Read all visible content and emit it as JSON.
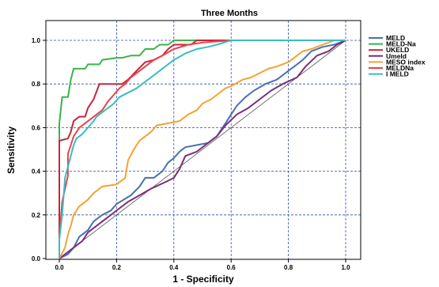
{
  "chart_data": {
    "type": "line",
    "title": "Three Months",
    "xlabel": "1 - Specificity",
    "ylabel": "Sensitivity",
    "xlim": [
      0,
      1
    ],
    "ylim": [
      0,
      1
    ],
    "xticks": [
      "0.0",
      "0.2",
      "0.4",
      "0.6",
      "0.8",
      "1.0"
    ],
    "yticks": [
      "0.0",
      "0.2",
      "0.4",
      "0.6",
      "0.8",
      "1.0"
    ],
    "grid": true,
    "grid_style": "dashed",
    "legend_position": "right",
    "reference_line": {
      "from": [
        0,
        0
      ],
      "to": [
        1,
        1
      ]
    },
    "series": [
      {
        "name": "MELD",
        "color": "#4a6fb5",
        "points": [
          [
            0,
            0
          ],
          [
            0.03,
            0.02
          ],
          [
            0.05,
            0.05
          ],
          [
            0.07,
            0.1
          ],
          [
            0.1,
            0.13
          ],
          [
            0.12,
            0.17
          ],
          [
            0.15,
            0.2
          ],
          [
            0.18,
            0.22
          ],
          [
            0.2,
            0.25
          ],
          [
            0.25,
            0.29
          ],
          [
            0.28,
            0.33
          ],
          [
            0.3,
            0.37
          ],
          [
            0.33,
            0.37
          ],
          [
            0.36,
            0.4
          ],
          [
            0.38,
            0.44
          ],
          [
            0.4,
            0.46
          ],
          [
            0.42,
            0.49
          ],
          [
            0.44,
            0.51
          ],
          [
            0.48,
            0.52
          ],
          [
            0.52,
            0.53
          ],
          [
            0.55,
            0.56
          ],
          [
            0.58,
            0.62
          ],
          [
            0.6,
            0.66
          ],
          [
            0.62,
            0.7
          ],
          [
            0.65,
            0.74
          ],
          [
            0.68,
            0.77
          ],
          [
            0.72,
            0.8
          ],
          [
            0.76,
            0.82
          ],
          [
            0.8,
            0.86
          ],
          [
            0.83,
            0.89
          ],
          [
            0.85,
            0.91
          ],
          [
            0.88,
            0.95
          ],
          [
            0.92,
            0.97
          ],
          [
            0.96,
            0.98
          ],
          [
            1,
            1
          ]
        ]
      },
      {
        "name": "MELD-Na",
        "color": "#39b54a",
        "points": [
          [
            0,
            0
          ],
          [
            0,
            0.62
          ],
          [
            0.01,
            0.74
          ],
          [
            0.03,
            0.74
          ],
          [
            0.04,
            0.82
          ],
          [
            0.05,
            0.87
          ],
          [
            0.09,
            0.87
          ],
          [
            0.1,
            0.89
          ],
          [
            0.14,
            0.89
          ],
          [
            0.15,
            0.91
          ],
          [
            0.2,
            0.92
          ],
          [
            0.22,
            0.92
          ],
          [
            0.25,
            0.93
          ],
          [
            0.28,
            0.93
          ],
          [
            0.3,
            0.96
          ],
          [
            0.33,
            0.96
          ],
          [
            0.35,
            0.98
          ],
          [
            0.38,
            0.98
          ],
          [
            0.4,
            1
          ],
          [
            1,
            1
          ]
        ]
      },
      {
        "name": "UKELD",
        "color": "#c0283c",
        "points": [
          [
            0,
            0
          ],
          [
            0,
            0.37
          ],
          [
            0,
            0.54
          ],
          [
            0.03,
            0.55
          ],
          [
            0.04,
            0.58
          ],
          [
            0.05,
            0.63
          ],
          [
            0.07,
            0.65
          ],
          [
            0.09,
            0.65
          ],
          [
            0.1,
            0.69
          ],
          [
            0.12,
            0.73
          ],
          [
            0.14,
            0.8
          ],
          [
            0.22,
            0.8
          ],
          [
            0.24,
            0.82
          ],
          [
            0.27,
            0.86
          ],
          [
            0.3,
            0.9
          ],
          [
            0.33,
            0.91
          ],
          [
            0.36,
            0.93
          ],
          [
            0.38,
            0.96
          ],
          [
            0.4,
            0.98
          ],
          [
            0.46,
            0.98
          ],
          [
            0.48,
            1
          ],
          [
            1,
            1
          ]
        ]
      },
      {
        "name": "Umeld",
        "color": "#7a2f7a",
        "points": [
          [
            0,
            0
          ],
          [
            0.02,
            0.02
          ],
          [
            0.05,
            0.05
          ],
          [
            0.08,
            0.08
          ],
          [
            0.1,
            0.12
          ],
          [
            0.14,
            0.16
          ],
          [
            0.18,
            0.2
          ],
          [
            0.21,
            0.23
          ],
          [
            0.24,
            0.26
          ],
          [
            0.28,
            0.29
          ],
          [
            0.32,
            0.32
          ],
          [
            0.37,
            0.35
          ],
          [
            0.4,
            0.37
          ],
          [
            0.42,
            0.41
          ],
          [
            0.44,
            0.47
          ],
          [
            0.48,
            0.49
          ],
          [
            0.52,
            0.53
          ],
          [
            0.55,
            0.56
          ],
          [
            0.58,
            0.61
          ],
          [
            0.62,
            0.66
          ],
          [
            0.66,
            0.69
          ],
          [
            0.7,
            0.73
          ],
          [
            0.74,
            0.77
          ],
          [
            0.78,
            0.8
          ],
          [
            0.83,
            0.83
          ],
          [
            0.86,
            0.88
          ],
          [
            0.9,
            0.93
          ],
          [
            0.94,
            0.95
          ],
          [
            0.97,
            0.98
          ],
          [
            1,
            1
          ]
        ]
      },
      {
        "name": "MESO index",
        "color": "#f4a233",
        "points": [
          [
            0,
            0
          ],
          [
            0.02,
            0.05
          ],
          [
            0.03,
            0.11
          ],
          [
            0.04,
            0.15
          ],
          [
            0.05,
            0.2
          ],
          [
            0.07,
            0.24
          ],
          [
            0.1,
            0.27
          ],
          [
            0.12,
            0.3
          ],
          [
            0.15,
            0.33
          ],
          [
            0.2,
            0.34
          ],
          [
            0.23,
            0.37
          ],
          [
            0.24,
            0.45
          ],
          [
            0.26,
            0.5
          ],
          [
            0.28,
            0.54
          ],
          [
            0.3,
            0.56
          ],
          [
            0.32,
            0.58
          ],
          [
            0.34,
            0.61
          ],
          [
            0.38,
            0.62
          ],
          [
            0.42,
            0.63
          ],
          [
            0.45,
            0.66
          ],
          [
            0.48,
            0.68
          ],
          [
            0.5,
            0.71
          ],
          [
            0.53,
            0.73
          ],
          [
            0.55,
            0.75
          ],
          [
            0.58,
            0.78
          ],
          [
            0.6,
            0.79
          ],
          [
            0.64,
            0.82
          ],
          [
            0.67,
            0.83
          ],
          [
            0.7,
            0.85
          ],
          [
            0.73,
            0.87
          ],
          [
            0.76,
            0.88
          ],
          [
            0.8,
            0.9
          ],
          [
            0.83,
            0.93
          ],
          [
            0.85,
            0.95
          ],
          [
            0.88,
            0.96
          ],
          [
            0.92,
            0.98
          ],
          [
            0.96,
            1
          ],
          [
            1,
            1
          ]
        ]
      },
      {
        "name": "MELDNa",
        "color": "#e8434b",
        "points": [
          [
            0,
            0
          ],
          [
            0,
            0.09
          ],
          [
            0.01,
            0.26
          ],
          [
            0.03,
            0.38
          ],
          [
            0.03,
            0.48
          ],
          [
            0.04,
            0.52
          ],
          [
            0.05,
            0.56
          ],
          [
            0.07,
            0.6
          ],
          [
            0.09,
            0.62
          ],
          [
            0.11,
            0.64
          ],
          [
            0.13,
            0.66
          ],
          [
            0.15,
            0.68
          ],
          [
            0.17,
            0.72
          ],
          [
            0.19,
            0.75
          ],
          [
            0.21,
            0.78
          ],
          [
            0.23,
            0.8
          ],
          [
            0.25,
            0.83
          ],
          [
            0.27,
            0.85
          ],
          [
            0.3,
            0.88
          ],
          [
            0.33,
            0.91
          ],
          [
            0.36,
            0.93
          ],
          [
            0.4,
            0.96
          ],
          [
            0.45,
            0.98
          ],
          [
            0.5,
            0.99
          ],
          [
            0.6,
            1
          ],
          [
            0.75,
            1
          ],
          [
            1,
            1
          ]
        ]
      },
      {
        "name": "I MELD",
        "color": "#3bbcc2",
        "points": [
          [
            0,
            0
          ],
          [
            0,
            0.09
          ],
          [
            0.01,
            0.2
          ],
          [
            0.02,
            0.37
          ],
          [
            0.04,
            0.47
          ],
          [
            0.05,
            0.52
          ],
          [
            0.06,
            0.55
          ],
          [
            0.08,
            0.57
          ],
          [
            0.1,
            0.6
          ],
          [
            0.12,
            0.63
          ],
          [
            0.13,
            0.65
          ],
          [
            0.15,
            0.67
          ],
          [
            0.17,
            0.69
          ],
          [
            0.19,
            0.71
          ],
          [
            0.21,
            0.74
          ],
          [
            0.24,
            0.76
          ],
          [
            0.27,
            0.78
          ],
          [
            0.3,
            0.81
          ],
          [
            0.33,
            0.84
          ],
          [
            0.36,
            0.87
          ],
          [
            0.4,
            0.91
          ],
          [
            0.44,
            0.94
          ],
          [
            0.48,
            0.96
          ],
          [
            0.52,
            0.97
          ],
          [
            0.55,
            0.98
          ],
          [
            0.6,
            1
          ],
          [
            0.75,
            1
          ],
          [
            1,
            1
          ]
        ]
      }
    ]
  }
}
